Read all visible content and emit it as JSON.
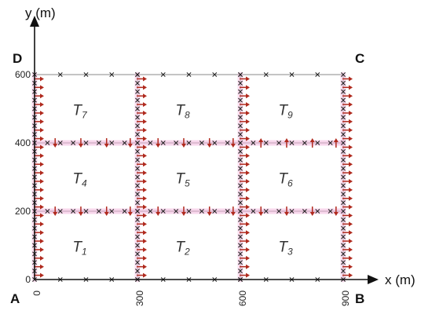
{
  "axes": {
    "x_label": "x (m)",
    "y_label": "y (m)"
  },
  "x_ticks": [
    "0",
    "300",
    "600",
    "900"
  ],
  "y_ticks": [
    "0",
    "200",
    "400",
    "600"
  ],
  "corners": {
    "A": "A",
    "B": "B",
    "C": "C",
    "D": "D"
  },
  "regions": [
    {
      "letter": "T",
      "sub": "1"
    },
    {
      "letter": "T",
      "sub": "2"
    },
    {
      "letter": "T",
      "sub": "3"
    },
    {
      "letter": "T",
      "sub": "4"
    },
    {
      "letter": "T",
      "sub": "5"
    },
    {
      "letter": "T",
      "sub": "6"
    },
    {
      "letter": "T",
      "sub": "7"
    },
    {
      "letter": "T",
      "sub": "8"
    },
    {
      "letter": "T",
      "sub": "9"
    }
  ],
  "colors": {
    "grid_line": "#8a8a8a",
    "arrow": "#b02a1e",
    "glow": "#f3b6dc",
    "axis": "#111111"
  },
  "flow": {
    "vertical_lines_x": [
      0,
      300,
      600,
      900
    ],
    "vertical_arrow_direction": "right",
    "horizontal_lines": [
      {
        "y": 200,
        "directions": [
          "down",
          "down",
          "down"
        ]
      },
      {
        "y": 400,
        "directions": [
          "down",
          "down",
          "up"
        ]
      }
    ]
  }
}
